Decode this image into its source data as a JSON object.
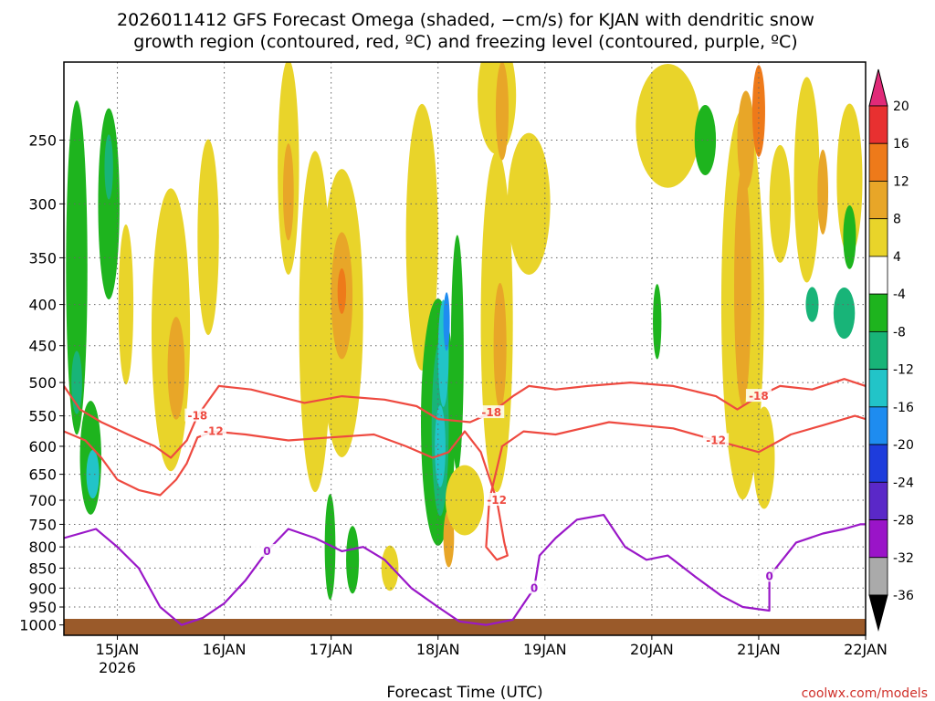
{
  "chart_data": {
    "type": "heatmap",
    "title_line1": "2026011412 GFS Forecast Omega (shaded, −cm/s) for KJAN with dendritic snow",
    "title_line2": "growth region (contoured, red, ºC) and freezing level (contoured, purple, ºC)",
    "xlabel": "Forecast Time (UTC)",
    "credit": "coolwx.com/models",
    "y_axis": {
      "range": [
        1030,
        200
      ],
      "ticks": [
        250,
        300,
        350,
        400,
        450,
        500,
        550,
        600,
        650,
        700,
        750,
        800,
        850,
        900,
        950,
        1000
      ]
    },
    "x_axis": {
      "range": [
        14.5,
        22.0
      ],
      "ticks": [
        {
          "value": 15,
          "label": "15JAN",
          "sub": "2026"
        },
        {
          "value": 16,
          "label": "16JAN"
        },
        {
          "value": 17,
          "label": "17JAN"
        },
        {
          "value": 18,
          "label": "18JAN"
        },
        {
          "value": 19,
          "label": "19JAN"
        },
        {
          "value": 20,
          "label": "20JAN"
        },
        {
          "value": 21,
          "label": "21JAN"
        },
        {
          "value": 22,
          "label": "22JAN"
        }
      ]
    },
    "colorbar": {
      "labels": [
        "20",
        "16",
        "12",
        "8",
        "4",
        "-4",
        "-8",
        "-12",
        "-16",
        "-20",
        "-24",
        "-28",
        "-32",
        "-36"
      ],
      "colors": [
        "#e02a78",
        "#e83030",
        "#ee7a1a",
        "#e8a628",
        "#e9d42a",
        "#ffffff",
        "#1eb41e",
        "#18b478",
        "#22c4c8",
        "#1e8cf0",
        "#1e3cdc",
        "#5a28c8",
        "#9a14c8",
        "#aaaaaa",
        "#000000"
      ]
    },
    "shading": [
      {
        "x": 14.62,
        "p": 360,
        "w": 0.1,
        "h": 320,
        "level": -8
      },
      {
        "x": 14.62,
        "p": 500,
        "w": 0.05,
        "h": 90,
        "level": -12
      },
      {
        "x": 14.75,
        "p": 620,
        "w": 0.1,
        "h": 200,
        "level": -8
      },
      {
        "x": 14.77,
        "p": 650,
        "w": 0.06,
        "h": 90,
        "level": -16
      },
      {
        "x": 14.92,
        "p": 300,
        "w": 0.1,
        "h": 160,
        "level": -8
      },
      {
        "x": 14.92,
        "p": 270,
        "w": 0.04,
        "h": 50,
        "level": -12
      },
      {
        "x": 15.08,
        "p": 400,
        "w": 0.07,
        "h": 180,
        "level": 4
      },
      {
        "x": 15.5,
        "p": 430,
        "w": 0.18,
        "h": 330,
        "level": 4
      },
      {
        "x": 15.55,
        "p": 480,
        "w": 0.08,
        "h": 140,
        "level": 8
      },
      {
        "x": 15.85,
        "p": 330,
        "w": 0.1,
        "h": 180,
        "level": 4
      },
      {
        "x": 16.6,
        "p": 270,
        "w": 0.1,
        "h": 200,
        "level": 4
      },
      {
        "x": 16.6,
        "p": 290,
        "w": 0.05,
        "h": 80,
        "level": 8
      },
      {
        "x": 16.85,
        "p": 420,
        "w": 0.15,
        "h": 380,
        "level": 4
      },
      {
        "x": 17.1,
        "p": 410,
        "w": 0.2,
        "h": 320,
        "level": 4
      },
      {
        "x": 17.1,
        "p": 390,
        "w": 0.1,
        "h": 140,
        "level": 8
      },
      {
        "x": 17.1,
        "p": 385,
        "w": 0.04,
        "h": 50,
        "level": 12
      },
      {
        "x": 16.99,
        "p": 800,
        "w": 0.05,
        "h": 240,
        "level": -8
      },
      {
        "x": 17.2,
        "p": 830,
        "w": 0.06,
        "h": 160,
        "level": -8
      },
      {
        "x": 17.55,
        "p": 850,
        "w": 0.08,
        "h": 110,
        "level": 4
      },
      {
        "x": 17.85,
        "p": 330,
        "w": 0.15,
        "h": 240,
        "level": 4
      },
      {
        "x": 18.0,
        "p": 560,
        "w": 0.16,
        "h": 380,
        "level": -8
      },
      {
        "x": 18.02,
        "p": 570,
        "w": 0.08,
        "h": 280,
        "level": -12
      },
      {
        "x": 18.05,
        "p": 460,
        "w": 0.05,
        "h": 140,
        "level": -16
      },
      {
        "x": 18.02,
        "p": 600,
        "w": 0.05,
        "h": 140,
        "level": -16
      },
      {
        "x": 18.08,
        "p": 420,
        "w": 0.03,
        "h": 70,
        "level": -20
      },
      {
        "x": 18.18,
        "p": 460,
        "w": 0.06,
        "h": 300,
        "level": -8
      },
      {
        "x": 18.1,
        "p": 780,
        "w": 0.05,
        "h": 130,
        "level": 8
      },
      {
        "x": 18.55,
        "p": 420,
        "w": 0.15,
        "h": 380,
        "level": 4
      },
      {
        "x": 18.58,
        "p": 450,
        "w": 0.06,
        "h": 160,
        "level": 8
      },
      {
        "x": 18.25,
        "p": 700,
        "w": 0.18,
        "h": 140,
        "level": 4
      },
      {
        "x": 18.55,
        "p": 220,
        "w": 0.18,
        "h": 120,
        "level": 4
      },
      {
        "x": 18.6,
        "p": 230,
        "w": 0.06,
        "h": 70,
        "level": 8
      },
      {
        "x": 18.85,
        "p": 300,
        "w": 0.2,
        "h": 120,
        "level": 4
      },
      {
        "x": 20.05,
        "p": 420,
        "w": 0.04,
        "h": 90,
        "level": -8
      },
      {
        "x": 20.15,
        "p": 240,
        "w": 0.3,
        "h": 90,
        "level": 4
      },
      {
        "x": 20.5,
        "p": 250,
        "w": 0.1,
        "h": 50,
        "level": -8
      },
      {
        "x": 20.85,
        "p": 400,
        "w": 0.2,
        "h": 420,
        "level": 4
      },
      {
        "x": 20.85,
        "p": 380,
        "w": 0.08,
        "h": 250,
        "level": 8
      },
      {
        "x": 20.88,
        "p": 250,
        "w": 0.08,
        "h": 70,
        "level": 8
      },
      {
        "x": 21.0,
        "p": 230,
        "w": 0.06,
        "h": 60,
        "level": 12
      },
      {
        "x": 21.2,
        "p": 300,
        "w": 0.1,
        "h": 100,
        "level": 4
      },
      {
        "x": 21.45,
        "p": 280,
        "w": 0.12,
        "h": 160,
        "level": 4
      },
      {
        "x": 21.6,
        "p": 290,
        "w": 0.05,
        "h": 70,
        "level": 8
      },
      {
        "x": 21.85,
        "p": 280,
        "w": 0.12,
        "h": 120,
        "level": 4
      },
      {
        "x": 21.85,
        "p": 330,
        "w": 0.06,
        "h": 60,
        "level": -8
      },
      {
        "x": 21.8,
        "p": 410,
        "w": 0.1,
        "h": 60,
        "level": -12
      },
      {
        "x": 21.5,
        "p": 400,
        "w": 0.06,
        "h": 40,
        "level": -12
      },
      {
        "x": 21.05,
        "p": 620,
        "w": 0.1,
        "h": 180,
        "level": 4
      }
    ],
    "contours_dgz": [
      {
        "level": "-18",
        "points": [
          [
            14.5,
            505
          ],
          [
            14.65,
            540
          ],
          [
            14.85,
            560
          ],
          [
            15.1,
            580
          ],
          [
            15.35,
            600
          ],
          [
            15.5,
            620
          ],
          [
            15.65,
            590
          ],
          [
            15.75,
            550
          ],
          [
            15.95,
            505
          ],
          [
            16.25,
            510
          ],
          [
            16.5,
            520
          ],
          [
            16.75,
            530
          ],
          [
            17.1,
            520
          ],
          [
            17.5,
            525
          ],
          [
            17.8,
            535
          ],
          [
            18.0,
            555
          ],
          [
            18.3,
            560
          ],
          [
            18.5,
            545
          ],
          [
            18.7,
            520
          ],
          [
            18.85,
            505
          ],
          [
            19.1,
            510
          ],
          [
            19.4,
            505
          ],
          [
            19.8,
            500
          ],
          [
            20.2,
            505
          ],
          [
            20.6,
            520
          ],
          [
            20.8,
            540
          ],
          [
            21.0,
            520
          ],
          [
            21.2,
            505
          ],
          [
            21.5,
            510
          ],
          [
            21.8,
            495
          ],
          [
            22.0,
            505
          ]
        ]
      },
      {
        "level": "-12",
        "points": [
          [
            14.5,
            575
          ],
          [
            14.7,
            590
          ],
          [
            14.85,
            620
          ],
          [
            15.0,
            660
          ],
          [
            15.2,
            680
          ],
          [
            15.4,
            690
          ],
          [
            15.55,
            660
          ],
          [
            15.65,
            630
          ],
          [
            15.75,
            585
          ],
          [
            15.9,
            575
          ],
          [
            16.2,
            580
          ],
          [
            16.6,
            590
          ],
          [
            17.0,
            585
          ],
          [
            17.4,
            580
          ],
          [
            17.7,
            600
          ],
          [
            17.95,
            620
          ],
          [
            18.1,
            610
          ],
          [
            18.25,
            575
          ],
          [
            18.4,
            610
          ],
          [
            18.55,
            700
          ],
          [
            18.62,
            790
          ],
          [
            18.65,
            820
          ],
          [
            18.55,
            830
          ],
          [
            18.45,
            800
          ],
          [
            18.48,
            700
          ],
          [
            18.6,
            600
          ],
          [
            18.8,
            575
          ],
          [
            19.1,
            580
          ],
          [
            19.6,
            560
          ],
          [
            20.2,
            570
          ],
          [
            20.6,
            590
          ],
          [
            21.0,
            610
          ],
          [
            21.3,
            580
          ],
          [
            21.6,
            565
          ],
          [
            21.9,
            550
          ],
          [
            22.0,
            555
          ]
        ]
      }
    ],
    "contours_freezing": [
      {
        "level": "0",
        "points": [
          [
            14.5,
            780
          ],
          [
            14.8,
            760
          ],
          [
            15.0,
            800
          ],
          [
            15.2,
            850
          ],
          [
            15.4,
            950
          ],
          [
            15.6,
            1000
          ],
          [
            15.8,
            980
          ],
          [
            16.0,
            940
          ],
          [
            16.2,
            880
          ],
          [
            16.4,
            810
          ],
          [
            16.6,
            760
          ],
          [
            16.85,
            780
          ],
          [
            17.1,
            810
          ],
          [
            17.3,
            800
          ],
          [
            17.5,
            830
          ],
          [
            17.75,
            900
          ],
          [
            18.0,
            950
          ],
          [
            18.2,
            990
          ],
          [
            18.45,
            1000
          ],
          [
            18.7,
            985
          ],
          [
            18.9,
            900
          ],
          [
            18.95,
            820
          ],
          [
            19.1,
            780
          ],
          [
            19.3,
            740
          ],
          [
            19.55,
            730
          ],
          [
            19.75,
            800
          ],
          [
            19.95,
            830
          ],
          [
            20.15,
            820
          ],
          [
            20.4,
            870
          ],
          [
            20.65,
            920
          ],
          [
            20.85,
            950
          ],
          [
            21.1,
            960
          ],
          [
            21.1,
            870
          ],
          [
            21.35,
            790
          ],
          [
            21.6,
            770
          ],
          [
            21.8,
            760
          ],
          [
            21.95,
            750
          ],
          [
            22.0,
            750
          ]
        ]
      }
    ]
  }
}
